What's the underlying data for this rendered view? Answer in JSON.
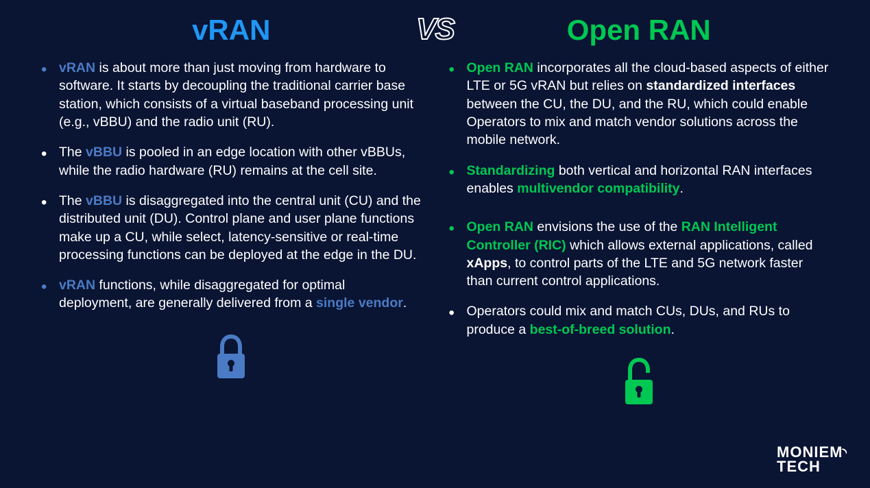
{
  "slide": {
    "background_color": "#0a1433",
    "text_color": "#ffffff",
    "highlight_blue": "#4a7bc4",
    "highlight_green": "#00c853",
    "title_blue": "#2196f3",
    "font_size_title": 42,
    "font_size_body": 19.5
  },
  "vs_label": "VS",
  "left": {
    "title": "vRAN",
    "bullets": [
      {
        "bullet_color": "blue",
        "segments": [
          {
            "t": "vRAN",
            "style": "blue"
          },
          {
            "t": " is about more than just moving from hardware to software. It starts by decoupling the traditional carrier base station, which consists of a virtual baseband processing unit (e.g., vBBU) and the radio unit (RU).",
            "style": "plain"
          }
        ]
      },
      {
        "bullet_color": "white",
        "segments": [
          {
            "t": "The ",
            "style": "plain"
          },
          {
            "t": "vBBU",
            "style": "blue"
          },
          {
            "t": " is pooled in an edge location with other vBBUs, while the radio hardware (RU) remains at the cell site.",
            "style": "plain"
          }
        ]
      },
      {
        "bullet_color": "white",
        "segments": [
          {
            "t": "The ",
            "style": "plain"
          },
          {
            "t": "vBBU",
            "style": "blue"
          },
          {
            "t": " is disaggregated into the central unit (CU) and the distributed unit (DU). Control plane and user plane functions make up a CU, while select, latency-sensitive or real-time processing functions can be deployed at the edge in the DU.",
            "style": "plain"
          }
        ]
      },
      {
        "bullet_color": "blue",
        "segments": [
          {
            "t": "vRAN",
            "style": "blue"
          },
          {
            "t": " functions, while disaggregated for optimal deployment, are generally delivered from a ",
            "style": "plain"
          },
          {
            "t": "single vendor",
            "style": "blue"
          },
          {
            "t": ".",
            "style": "plain"
          }
        ]
      }
    ],
    "icon": {
      "name": "lock-closed-icon",
      "color": "#4a7bc4"
    }
  },
  "right": {
    "title": "Open RAN",
    "bullets": [
      {
        "bullet_color": "green",
        "segments": [
          {
            "t": "Open RAN",
            "style": "green"
          },
          {
            "t": " incorporates all the cloud-based aspects of either LTE or 5G vRAN but relies on ",
            "style": "plain"
          },
          {
            "t": "standardized interfaces",
            "style": "bold"
          },
          {
            "t": " between the CU, the DU, and the RU, which could enable Operators to mix and match vendor solutions across the mobile network.",
            "style": "plain"
          }
        ]
      },
      {
        "bullet_color": "green",
        "segments": [
          {
            "t": "Standardizing",
            "style": "green"
          },
          {
            "t": " both vertical and horizontal RAN interfaces enables ",
            "style": "plain"
          },
          {
            "t": "multivendor compatibility",
            "style": "green"
          },
          {
            "t": ".",
            "style": "plain"
          }
        ]
      },
      {
        "bullet_color": "green",
        "gap_before": 30,
        "segments": [
          {
            "t": "Open RAN",
            "style": "green"
          },
          {
            "t": " envisions the use of the ",
            "style": "plain"
          },
          {
            "t": "RAN Intelligent Controller (RIC)",
            "style": "green"
          },
          {
            "t": " which allows external applications, called ",
            "style": "plain"
          },
          {
            "t": "xApps",
            "style": "bold"
          },
          {
            "t": ", to control parts of the LTE and 5G network faster than current control applications.",
            "style": "plain"
          }
        ]
      },
      {
        "bullet_color": "white",
        "segments": [
          {
            "t": "Operators could mix and match CUs, DUs, and RUs to produce a ",
            "style": "plain"
          },
          {
            "t": "best-of-breed solution",
            "style": "green"
          },
          {
            "t": ".",
            "style": "plain"
          }
        ]
      }
    ],
    "icon": {
      "name": "lock-open-icon",
      "color": "#00c853"
    }
  },
  "logo": {
    "line1": "MONIEM",
    "line2": "TECH"
  }
}
